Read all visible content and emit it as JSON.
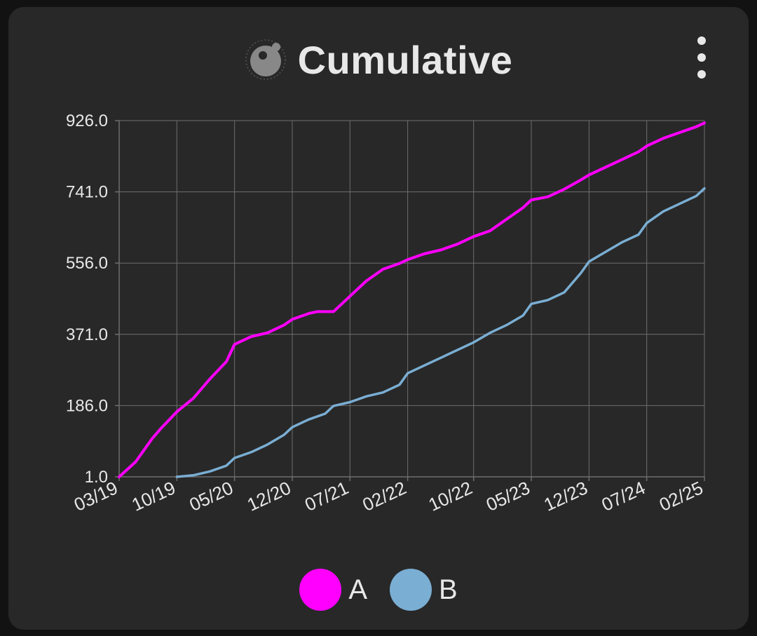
{
  "card": {
    "title": "Cumulative",
    "title_icon": "planet-icon",
    "menu_icon": "more-vertical-icon"
  },
  "colors": {
    "background": "#282828",
    "grid": "#6e6e6e",
    "text": "#e8e8e8"
  },
  "chart_data": {
    "type": "line",
    "title": "Cumulative",
    "xlabel": "",
    "ylabel": "",
    "xlim": [
      "2019-03",
      "2025-02"
    ],
    "ylim": [
      1.0,
      926.0
    ],
    "y_ticks": [
      "1.0",
      "186.0",
      "371.0",
      "556.0",
      "741.0",
      "926.0"
    ],
    "x_tick_labels": [
      "03/19",
      "10/19",
      "05/20",
      "12/20",
      "07/21",
      "02/22",
      "10/22",
      "05/23",
      "12/23",
      "07/24",
      "02/25"
    ],
    "x_ticks": [
      "2019-03",
      "2019-10",
      "2020-05",
      "2020-12",
      "2021-07",
      "2022-02",
      "2022-10",
      "2023-05",
      "2023-12",
      "2024-07",
      "2025-02"
    ],
    "grid": true,
    "legend": "bottom-center",
    "series": [
      {
        "name": "A",
        "color": "#ff00ff",
        "x": [
          "2019-03",
          "2019-05",
          "2019-07",
          "2019-08",
          "2019-10",
          "2019-12",
          "2020-02",
          "2020-04",
          "2020-05",
          "2020-07",
          "2020-09",
          "2020-11",
          "2020-12",
          "2021-02",
          "2021-03",
          "2021-05",
          "2021-07",
          "2021-09",
          "2021-11",
          "2022-01",
          "2022-02",
          "2022-04",
          "2022-06",
          "2022-08",
          "2022-10",
          "2022-12",
          "2023-02",
          "2023-04",
          "2023-05",
          "2023-07",
          "2023-09",
          "2023-11",
          "2023-12",
          "2024-02",
          "2024-04",
          "2024-06",
          "2024-07",
          "2024-09",
          "2024-11",
          "2025-01",
          "2025-02"
        ],
        "values": [
          1,
          40,
          100,
          125,
          170,
          205,
          255,
          300,
          345,
          365,
          375,
          395,
          410,
          425,
          430,
          430,
          470,
          510,
          540,
          555,
          565,
          580,
          590,
          605,
          625,
          640,
          670,
          700,
          720,
          728,
          748,
          772,
          785,
          805,
          825,
          845,
          860,
          880,
          895,
          910,
          920
        ]
      },
      {
        "name": "B",
        "color": "#7aaed3",
        "x": [
          "2019-10",
          "2019-12",
          "2020-02",
          "2020-04",
          "2020-05",
          "2020-07",
          "2020-09",
          "2020-11",
          "2020-12",
          "2021-02",
          "2021-04",
          "2021-05",
          "2021-07",
          "2021-09",
          "2021-11",
          "2022-01",
          "2022-02",
          "2022-04",
          "2022-06",
          "2022-08",
          "2022-10",
          "2022-12",
          "2023-02",
          "2023-04",
          "2023-05",
          "2023-07",
          "2023-09",
          "2023-11",
          "2023-12",
          "2024-02",
          "2024-04",
          "2024-06",
          "2024-07",
          "2024-09",
          "2024-11",
          "2025-01",
          "2025-02"
        ],
        "values": [
          1,
          5,
          15,
          30,
          50,
          65,
          85,
          110,
          130,
          150,
          165,
          185,
          195,
          210,
          220,
          240,
          270,
          290,
          310,
          330,
          350,
          375,
          395,
          420,
          450,
          460,
          480,
          530,
          560,
          585,
          610,
          630,
          660,
          690,
          710,
          730,
          750
        ]
      }
    ]
  }
}
